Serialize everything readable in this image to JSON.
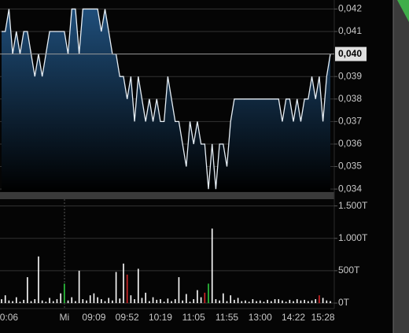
{
  "chart_data": [
    {
      "type": "area",
      "color": "#e6eef5",
      "fill_top": "#1f4e7a",
      "values": [
        0.041,
        0.041,
        0.042,
        0.04,
        0.041,
        0.04,
        0.041,
        0.041,
        0.04,
        0.039,
        0.04,
        0.039,
        0.04,
        0.041,
        0.041,
        0.041,
        0.041,
        0.041,
        0.04,
        0.042,
        0.042,
        0.04,
        0.042,
        0.042,
        0.042,
        0.042,
        0.042,
        0.041,
        0.042,
        0.041,
        0.04,
        0.04,
        0.039,
        0.039,
        0.038,
        0.039,
        0.037,
        0.039,
        0.038,
        0.037,
        0.038,
        0.037,
        0.038,
        0.037,
        0.037,
        0.039,
        0.038,
        0.037,
        0.037,
        0.036,
        0.035,
        0.037,
        0.036,
        0.037,
        0.036,
        0.036,
        0.034,
        0.036,
        0.034,
        0.036,
        0.036,
        0.035,
        0.037,
        0.038,
        0.038,
        0.038,
        0.038,
        0.038,
        0.038,
        0.038,
        0.038,
        0.038,
        0.038,
        0.038,
        0.038,
        0.038,
        0.037,
        0.038,
        0.038,
        0.037,
        0.038,
        0.037,
        0.038,
        0.038,
        0.039,
        0.038,
        0.039,
        0.037,
        0.039,
        0.04
      ],
      "ylim": [
        0.0339,
        0.0424
      ],
      "yticks": [
        {
          "value": 0.042,
          "label": "0,042"
        },
        {
          "value": 0.041,
          "label": "0,041"
        },
        {
          "value": 0.039,
          "label": "0,039"
        },
        {
          "value": 0.038,
          "label": "0,038"
        },
        {
          "value": 0.037,
          "label": "0,037"
        },
        {
          "value": 0.036,
          "label": "0,036"
        },
        {
          "value": 0.035,
          "label": "0,035"
        },
        {
          "value": 0.034,
          "label": "0,034"
        }
      ],
      "last_value": {
        "value": 0.04,
        "label": "0,040"
      },
      "grid": true
    },
    {
      "type": "bar",
      "categories": [
        null,
        null,
        "0:06",
        null,
        null,
        null,
        null,
        null,
        null,
        null,
        null,
        null,
        null,
        null,
        null,
        null,
        null,
        "Mi",
        null,
        null,
        null,
        null,
        null,
        null,
        null,
        "09:09",
        null,
        null,
        null,
        null,
        null,
        null,
        null,
        null,
        "09:52",
        null,
        null,
        null,
        null,
        null,
        null,
        null,
        null,
        "10:19",
        null,
        null,
        null,
        null,
        null,
        null,
        null,
        null,
        "11:05",
        null,
        null,
        null,
        null,
        null,
        null,
        null,
        null,
        "11:55",
        null,
        null,
        null,
        null,
        null,
        null,
        null,
        null,
        "13:00",
        null,
        null,
        null,
        null,
        null,
        null,
        null,
        null,
        "14:22",
        null,
        null,
        null,
        null,
        null,
        null,
        null,
        "15:28",
        null,
        null
      ],
      "values": [
        60,
        120,
        40,
        30,
        90,
        20,
        50,
        400,
        30,
        60,
        720,
        40,
        20,
        80,
        30,
        60,
        150,
        300,
        40,
        90,
        30,
        500,
        60,
        40,
        120,
        150,
        90,
        60,
        30,
        80,
        40,
        480,
        70,
        610,
        440,
        120,
        60,
        530,
        80,
        160,
        30,
        90,
        50,
        60,
        20,
        70,
        30,
        60,
        400,
        40,
        140,
        20,
        60,
        200,
        90,
        160,
        300,
        1150,
        60,
        40,
        150,
        30,
        120,
        50,
        80,
        30,
        40,
        20,
        60,
        30,
        40,
        20,
        50,
        30,
        60,
        60,
        40,
        20,
        50,
        30,
        60,
        40,
        50,
        30,
        40,
        60,
        120,
        80,
        40,
        30
      ],
      "colors": [
        "#fff",
        "#fff",
        "#fff",
        "#fff",
        "#fff",
        "#fff",
        "#fff",
        "#fff",
        "#fff",
        "#fff",
        "#fff",
        "#fff",
        "#fff",
        "#fff",
        "#fff",
        "#fff",
        "#fff",
        "#2ecc40",
        "#fff",
        "#fff",
        "#fff",
        "#fff",
        "#fff",
        "#fff",
        "#fff",
        "#fff",
        "#fff",
        "#fff",
        "#fff",
        "#fff",
        "#fff",
        "#fff",
        "#fff",
        "#fff",
        "#d62728",
        "#fff",
        "#fff",
        "#fff",
        "#fff",
        "#fff",
        "#fff",
        "#fff",
        "#fff",
        "#fff",
        "#fff",
        "#fff",
        "#fff",
        "#fff",
        "#fff",
        "#fff",
        "#fff",
        "#fff",
        "#fff",
        "#fff",
        "#fff",
        "#d62728",
        "#2ecc40",
        "#fff",
        "#fff",
        "#fff",
        "#fff",
        "#fff",
        "#fff",
        "#fff",
        "#fff",
        "#fff",
        "#fff",
        "#fff",
        "#fff",
        "#fff",
        "#fff",
        "#fff",
        "#fff",
        "#fff",
        "#fff",
        "#fff",
        "#fff",
        "#fff",
        "#fff",
        "#fff",
        "#fff",
        "#fff",
        "#fff",
        "#fff",
        "#fff",
        "#fff",
        "#d62728",
        "#fff",
        "#fff",
        "#fff"
      ],
      "ylim": [
        0,
        1580
      ],
      "yticks": [
        {
          "value": 1500,
          "label": "1.500T"
        },
        {
          "value": 1000,
          "label": "1.000T"
        },
        {
          "value": 500,
          "label": "500T"
        },
        {
          "value": 0,
          "label": "0T"
        }
      ],
      "grid": true
    }
  ]
}
